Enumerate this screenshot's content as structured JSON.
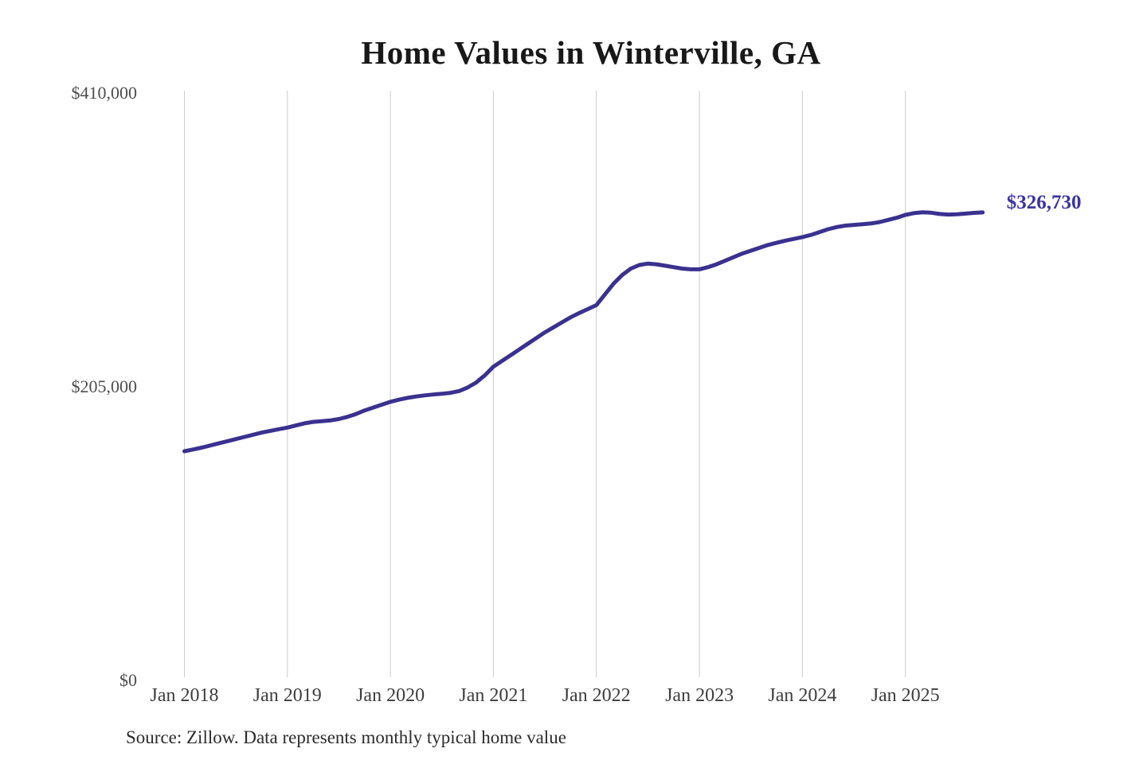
{
  "title": "Home Values in Winterville, GA",
  "source_note": "Source: Zillow. Data represents monthly typical home value",
  "end_label": "$326,730",
  "colors": {
    "line": "#3a318f",
    "accent_label": "#3b35a0",
    "grid": "#cccccc",
    "title": "#181818",
    "y_axis_text": "#4d4d4d",
    "x_axis_text": "#3d3d3d",
    "source_text": "#2b2b2b",
    "background": "#ffffff"
  },
  "chart_data": {
    "type": "line",
    "title": "Home Values in Winterville, GA",
    "series_name": "Monthly typical home value",
    "frequency": "monthly",
    "x_start_label": "Jan 2018",
    "x_tick_labels": [
      "Jan 2018",
      "Jan 2019",
      "Jan 2020",
      "Jan 2021",
      "Jan 2022",
      "Jan 2023",
      "Jan 2024",
      "Jan 2025"
    ],
    "y_tick_labels": [
      "$0",
      "$205,000",
      "$410,000"
    ],
    "y_tick_values": [
      0,
      205000,
      410000
    ],
    "ylim": [
      0,
      410000
    ],
    "grid": "vertical-only",
    "legend": "none",
    "end_value": 326730,
    "values": [
      160000,
      161200,
      162500,
      164000,
      165500,
      167000,
      168500,
      170000,
      171500,
      173000,
      174200,
      175400,
      176500,
      178000,
      179500,
      180500,
      181000,
      181500,
      182500,
      184000,
      186000,
      188500,
      190500,
      192500,
      194500,
      196000,
      197300,
      198200,
      199000,
      199600,
      200100,
      200800,
      202000,
      204500,
      208000,
      213000,
      219000,
      223000,
      227000,
      231000,
      235000,
      239000,
      243000,
      246500,
      250000,
      253500,
      256500,
      259200,
      262000,
      269500,
      277000,
      283000,
      287500,
      290000,
      291000,
      290500,
      289500,
      288500,
      287500,
      287000,
      287000,
      288500,
      290500,
      293000,
      295500,
      298000,
      300000,
      302000,
      304000,
      305500,
      307000,
      308200,
      309500,
      311000,
      313000,
      315000,
      316500,
      317500,
      318000,
      318500,
      319000,
      320000,
      321500,
      323000,
      325000,
      326200,
      326800,
      326500,
      325600,
      325200,
      325400,
      325900,
      326400,
      326730
    ]
  }
}
